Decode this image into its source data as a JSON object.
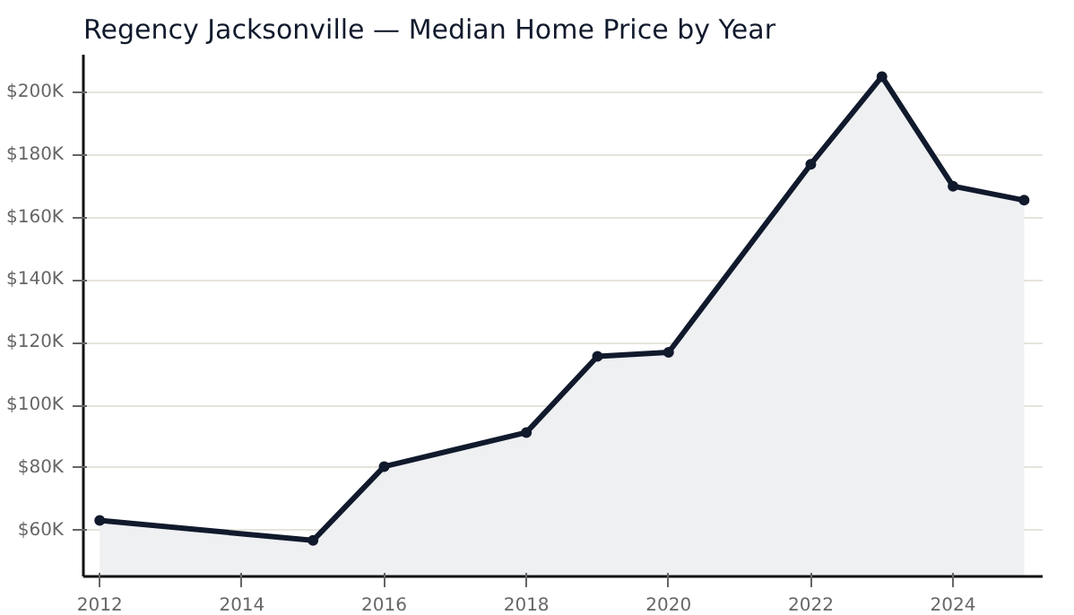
{
  "chart_data": {
    "type": "area",
    "title": "Regency Jacksonville — Median Home Price by Year",
    "x": [
      2012,
      2015,
      2016,
      2018,
      2019,
      2020,
      2022,
      2023,
      2024,
      2025
    ],
    "series": [
      {
        "color": "#111a2c",
        "values": [
          63200,
          56800,
          80400,
          91300,
          115600,
          116900,
          177000,
          205000,
          170000,
          165500
        ]
      }
    ],
    "xlim": [
      2011.77,
      2025.26
    ],
    "xticks": [
      2012,
      2014,
      2016,
      2018,
      2020,
      2022,
      2024
    ],
    "ylim": [
      45300,
      212000
    ],
    "yticks": [
      {
        "value": 60000,
        "label": "$60K"
      },
      {
        "value": 80000,
        "label": "$80K"
      },
      {
        "value": 100000,
        "label": "$100K"
      },
      {
        "value": 120000,
        "label": "$120K"
      },
      {
        "value": 140000,
        "label": "$140K"
      },
      {
        "value": 160000,
        "label": "$160K"
      },
      {
        "value": 180000,
        "label": "$180K"
      },
      {
        "value": 200000,
        "label": "$200K"
      }
    ],
    "grid": "y",
    "marker": "circle",
    "line_style": "solid"
  }
}
